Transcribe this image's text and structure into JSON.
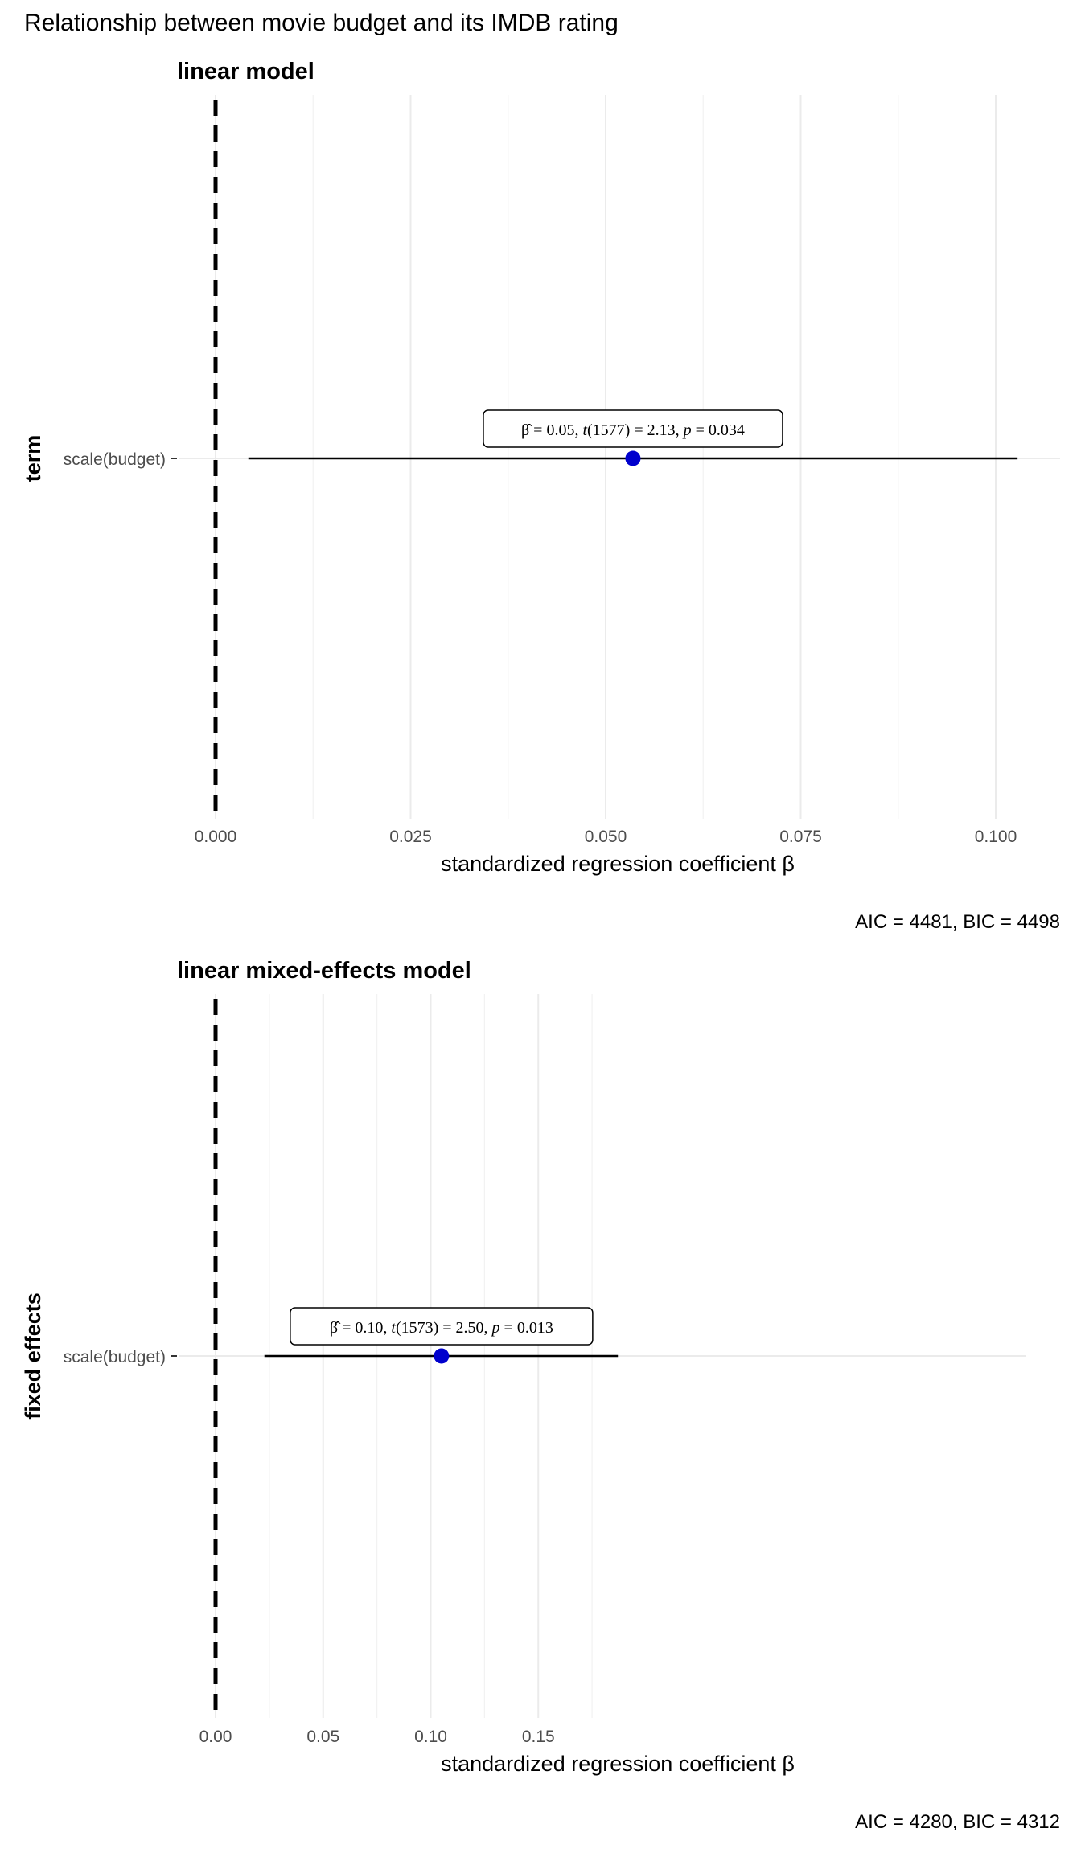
{
  "figure_title": "Relationship between movie budget and its IMDB rating",
  "chart_data": [
    {
      "type": "scatter",
      "subtitle": "linear model",
      "ylabel": "term",
      "xlabel": "standardized regression coefficient β",
      "xlim": [
        0.0,
        0.107
      ],
      "x_ticks": [
        0.0,
        0.025,
        0.05,
        0.075,
        0.1
      ],
      "x_tick_labels": [
        "0.000",
        "0.025",
        "0.050",
        "0.075",
        "0.100"
      ],
      "x_minor_ticks": [
        0.0125,
        0.0375,
        0.0625,
        0.0875
      ],
      "y_tick_labels": [
        "scale(budget)"
      ],
      "grid": true,
      "reference_line_x": 0,
      "points": [
        {
          "term": "scale(budget)",
          "estimate": 0.0535,
          "ci_low": 0.0042,
          "ci_high": 0.1028
        }
      ],
      "annotation": {
        "estimate": "0.05",
        "df": "1577",
        "t": "2.13",
        "p": "0.034"
      },
      "caption": "AIC = 4481, BIC = 4498"
    },
    {
      "type": "scatter",
      "subtitle": "linear mixed-effects model",
      "ylabel": "fixed effects",
      "xlabel": "standardized regression coefficient β",
      "xlim": [
        0.0,
        0.19
      ],
      "x_ticks": [
        0.0,
        0.05,
        0.1,
        0.15
      ],
      "x_tick_labels": [
        "0.00",
        "0.05",
        "0.10",
        "0.15"
      ],
      "x_minor_ticks": [
        0.025,
        0.075,
        0.125,
        0.175
      ],
      "y_tick_labels": [
        "scale(budget)"
      ],
      "grid": true,
      "reference_line_x": 0,
      "points": [
        {
          "term": "scale(budget)",
          "estimate": 0.105,
          "ci_low": 0.0227,
          "ci_high": 0.187
        }
      ],
      "annotation": {
        "estimate": "0.10",
        "df": "1573",
        "t": "2.50",
        "p": "0.013"
      },
      "caption": "AIC = 4280, BIC = 4312"
    }
  ],
  "colors": {
    "point": "#0000CD",
    "major_grid": "#EBEBEB",
    "minor_grid": "#F2F2F2",
    "reference_line": "#000000",
    "errorbar": "#000000"
  }
}
